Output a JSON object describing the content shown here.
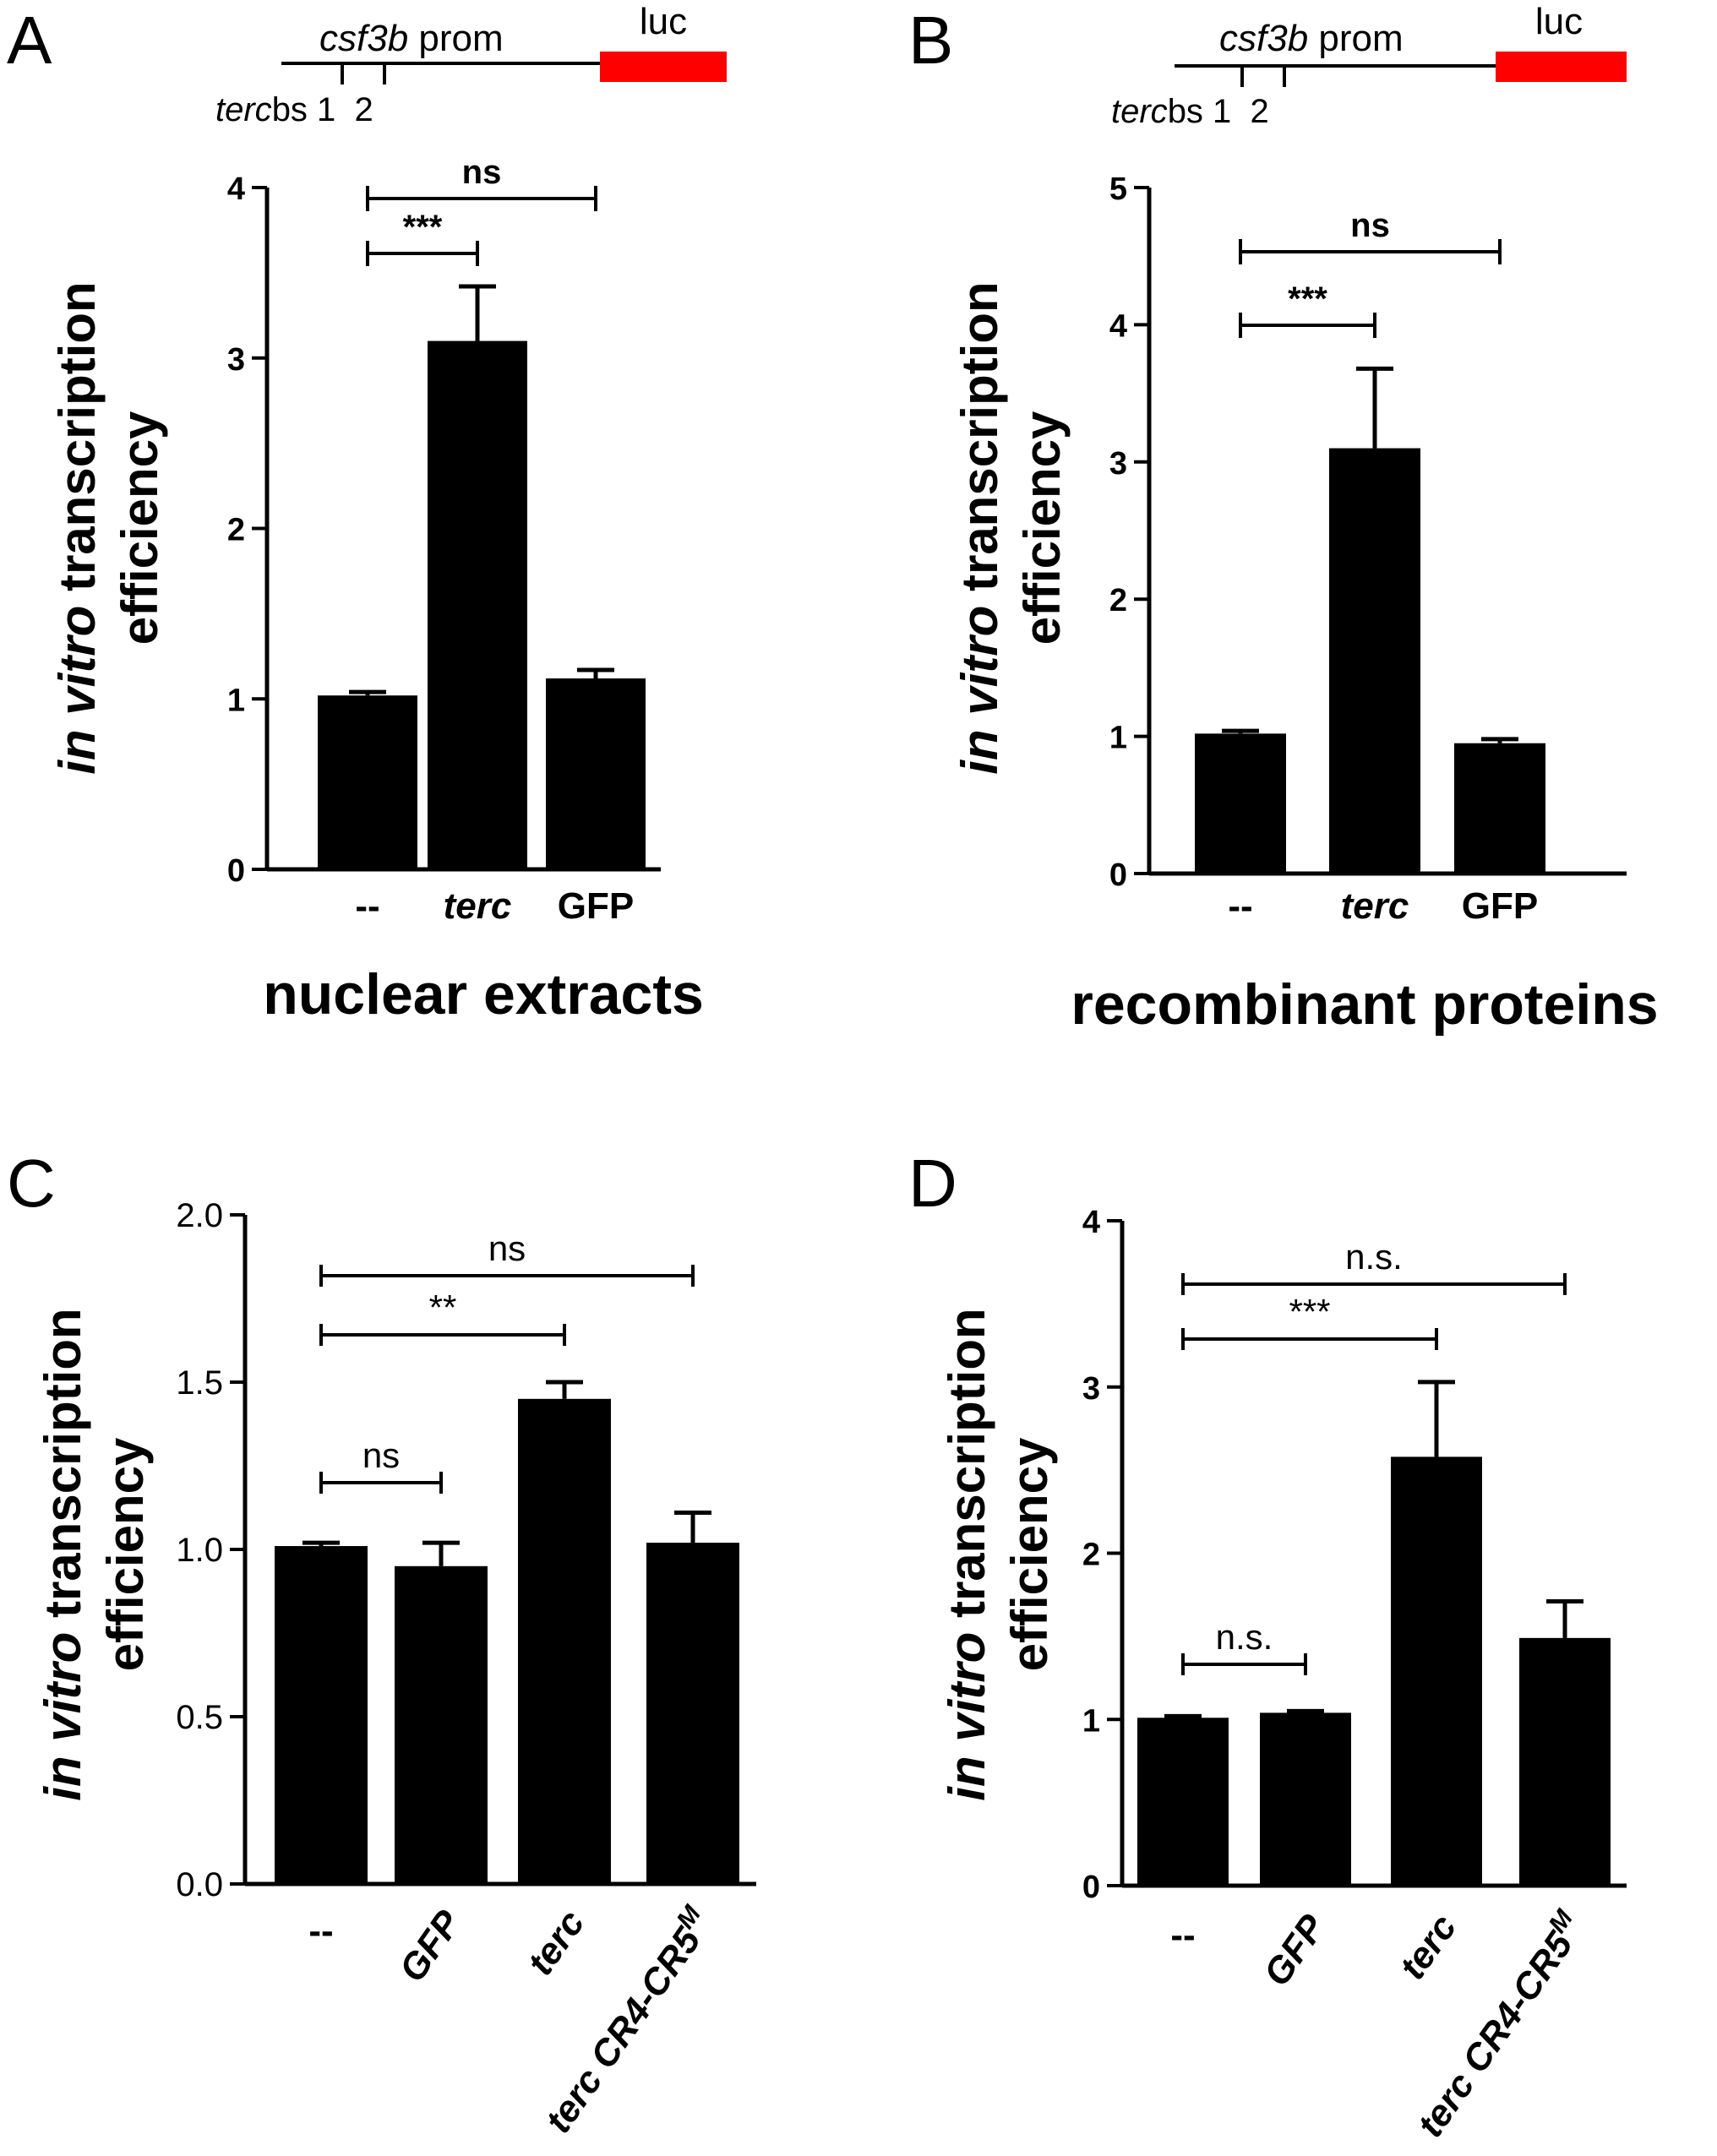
{
  "panels": [
    {
      "id": "A",
      "label": "A",
      "ylabel_italic": "in vitro",
      "ylabel_rest": " transcription",
      "ylabel_line2": "efficiency",
      "caption": "nuclear extracts",
      "promoter": {
        "italic": "csf3b",
        "rest": " prom",
        "luc": "luc",
        "sites_italic": "terc",
        "sites_rest": "bs 1  2"
      }
    },
    {
      "id": "B",
      "label": "B",
      "ylabel_italic": "in vitro",
      "ylabel_rest": " transcription",
      "ylabel_line2": "efficiency",
      "caption": "recombinant proteins",
      "promoter": {
        "italic": "csf3b",
        "rest": " prom",
        "luc": "luc",
        "sites_italic": "terc",
        "sites_rest": "bs 1  2"
      }
    },
    {
      "id": "C",
      "label": "C",
      "ylabel_italic": "in vitro",
      "ylabel_rest": " transcription",
      "ylabel_line2": "efficiency",
      "caption": ""
    },
    {
      "id": "D",
      "label": "D",
      "ylabel_italic": "in vitro",
      "ylabel_rest": " transcription",
      "ylabel_line2": "efficiency",
      "caption": ""
    }
  ],
  "colors": {
    "bars": "#000000",
    "luc_box": "#ff0000",
    "axis": "#000000"
  },
  "chart_data": [
    {
      "panel": "A",
      "type": "bar",
      "categories": [
        "--",
        "terc",
        "GFP"
      ],
      "values": [
        1.02,
        3.1,
        1.12
      ],
      "errors": [
        0.02,
        0.32,
        0.05
      ],
      "ylabel": "in vitro transcription efficiency",
      "xlabel": "nuclear extracts",
      "ylim": [
        0,
        4
      ],
      "yticks": [
        "0",
        "1",
        "2",
        "3",
        "4"
      ],
      "significance": [
        {
          "from": 0,
          "to": 1,
          "label": "***"
        },
        {
          "from": 0,
          "to": 2,
          "label": "ns"
        }
      ]
    },
    {
      "panel": "B",
      "type": "bar",
      "categories": [
        "--",
        "terc",
        "GFP"
      ],
      "values": [
        1.02,
        3.1,
        0.95
      ],
      "errors": [
        0.02,
        0.58,
        0.03
      ],
      "ylabel": "in vitro transcription efficiency",
      "xlabel": "recombinant proteins",
      "ylim": [
        0,
        5
      ],
      "yticks": [
        "0",
        "1",
        "2",
        "3",
        "4",
        "5"
      ],
      "significance": [
        {
          "from": 0,
          "to": 1,
          "label": "***"
        },
        {
          "from": 0,
          "to": 2,
          "label": "ns"
        }
      ]
    },
    {
      "panel": "C",
      "type": "bar",
      "categories": [
        "--",
        "GFP",
        "terc",
        "terc CR4-CR5M"
      ],
      "category_display": [
        {
          "text": "--",
          "italic": false,
          "sup": ""
        },
        {
          "text": "GFP",
          "italic": true,
          "sup": ""
        },
        {
          "text": "terc",
          "italic": true,
          "sup": ""
        },
        {
          "text": "terc CR4-CR5",
          "italic": true,
          "sup": "M"
        }
      ],
      "values": [
        1.01,
        0.95,
        1.45,
        1.02
      ],
      "errors": [
        0.01,
        0.07,
        0.05,
        0.09
      ],
      "ylabel": "in vitro transcription efficiency",
      "ylim": [
        0,
        2
      ],
      "yticks": [
        "0.0",
        "0.5",
        "1.0",
        "1.5",
        "2.0"
      ],
      "significance": [
        {
          "from": 0,
          "to": 1,
          "label": "ns"
        },
        {
          "from": 0,
          "to": 2,
          "label": "**"
        },
        {
          "from": 0,
          "to": 3,
          "label": "ns"
        }
      ]
    },
    {
      "panel": "D",
      "type": "bar",
      "categories": [
        "--",
        "GFP",
        "terc",
        "terc CR4-CR5M"
      ],
      "category_display": [
        {
          "text": "--",
          "italic": false,
          "sup": ""
        },
        {
          "text": "GFP",
          "italic": true,
          "sup": ""
        },
        {
          "text": "terc",
          "italic": true,
          "sup": ""
        },
        {
          "text": "terc CR4-CR5",
          "italic": true,
          "sup": "M"
        }
      ],
      "values": [
        1.01,
        1.04,
        2.58,
        1.49
      ],
      "errors": [
        0.01,
        0.01,
        0.45,
        0.22
      ],
      "ylabel": "in vitro transcription efficiency",
      "ylim": [
        0,
        4
      ],
      "yticks": [
        "0",
        "1",
        "2",
        "3",
        "4"
      ],
      "significance": [
        {
          "from": 0,
          "to": 1,
          "label": "n.s."
        },
        {
          "from": 0,
          "to": 2,
          "label": "***"
        },
        {
          "from": 0,
          "to": 3,
          "label": "n.s."
        }
      ]
    }
  ]
}
